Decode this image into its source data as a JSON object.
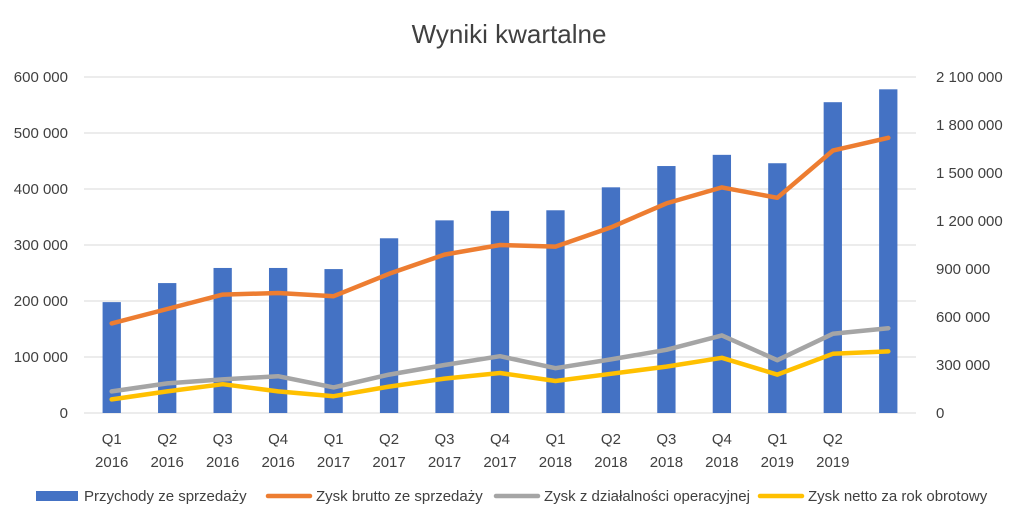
{
  "chart_data": {
    "type": "bar",
    "title": "Wyniki kwartalne",
    "categories": [
      [
        "Q1",
        "2016"
      ],
      [
        "Q2",
        "2016"
      ],
      [
        "Q3",
        "2016"
      ],
      [
        "Q4",
        "2016"
      ],
      [
        "Q1",
        "2017"
      ],
      [
        "Q2",
        "2017"
      ],
      [
        "Q3",
        "2017"
      ],
      [
        "Q4",
        "2017"
      ],
      [
        "Q1",
        "2018"
      ],
      [
        "Q2",
        "2018"
      ],
      [
        "Q3",
        "2018"
      ],
      [
        "Q4",
        "2018"
      ],
      [
        "Q1",
        "2019"
      ],
      [
        "Q2",
        "2019"
      ],
      [
        "",
        ""
      ]
    ],
    "y_left": {
      "range": [
        0,
        600000
      ],
      "ticks": [
        0,
        100000,
        200000,
        300000,
        400000,
        500000,
        600000
      ],
      "tick_labels": [
        "0",
        "100 000",
        "200 000",
        "300 000",
        "400 000",
        "500 000",
        "600 000"
      ]
    },
    "y_right": {
      "range": [
        0,
        2100000
      ],
      "ticks": [
        0,
        300000,
        600000,
        900000,
        1200000,
        1500000,
        1800000,
        2100000
      ],
      "tick_labels": [
        "0",
        "300 000",
        "600 000",
        "900 000",
        "1 200 000",
        "1 500 000",
        "1 800 000",
        "2 100 000"
      ]
    },
    "grid": true,
    "legend_position": "bottom",
    "series": [
      {
        "name": "Przychody ze sprzedaży",
        "type": "bar",
        "axis": "left",
        "color": "#4472C4",
        "values": [
          198000,
          232000,
          259000,
          259000,
          257000,
          312000,
          344000,
          361000,
          362000,
          403000,
          441000,
          461000,
          446000,
          555000,
          578000
        ]
      },
      {
        "name": "Zysk brutto ze sprzedaży",
        "type": "line",
        "axis": "right",
        "color": "#ED7D31",
        "values": [
          560000,
          650000,
          740000,
          750000,
          730000,
          870000,
          990000,
          1050000,
          1040000,
          1160000,
          1310000,
          1410000,
          1345000,
          1640000,
          1720000
        ]
      },
      {
        "name": "Zysk z działalności operacyjnej",
        "type": "line",
        "axis": "right",
        "color": "#A5A5A5",
        "values": [
          135000,
          185000,
          210000,
          230000,
          160000,
          240000,
          300000,
          355000,
          280000,
          335000,
          395000,
          485000,
          330000,
          495000,
          530000
        ]
      },
      {
        "name": "Zysk netto za rok obrotowy",
        "type": "line",
        "axis": "right",
        "color": "#FFC000",
        "values": [
          85000,
          135000,
          180000,
          135000,
          105000,
          165000,
          215000,
          250000,
          200000,
          245000,
          290000,
          345000,
          240000,
          370000,
          385000
        ]
      }
    ]
  }
}
